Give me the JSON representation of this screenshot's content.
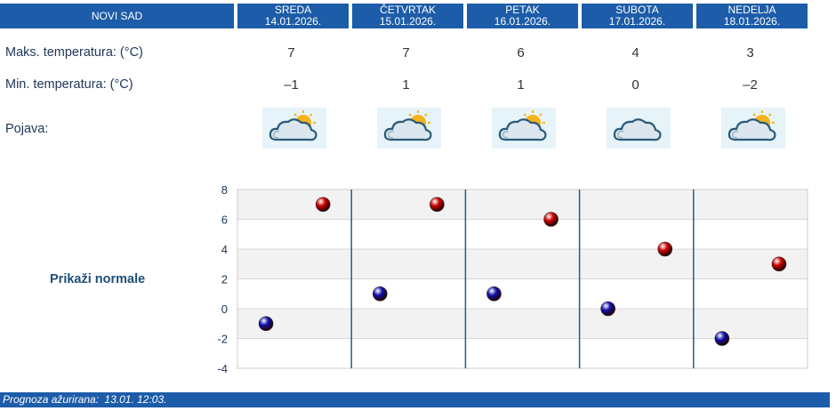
{
  "city": "NOVI SAD",
  "days": [
    {
      "name": "SREDA",
      "date": "14.01.2026.",
      "max": "7",
      "min": "–1",
      "icon": "partly-cloudy-icon"
    },
    {
      "name": "ČETVRTAK",
      "date": "15.01.2026.",
      "max": "7",
      "min": "1",
      "icon": "partly-cloudy-icon"
    },
    {
      "name": "PETAK",
      "date": "16.01.2026.",
      "max": "6",
      "min": "1",
      "icon": "partly-cloudy-icon"
    },
    {
      "name": "SUBOTA",
      "date": "17.01.2026.",
      "max": "4",
      "min": "0",
      "icon": "cloud-icon"
    },
    {
      "name": "NEDELJA",
      "date": "18.01.2026.",
      "max": "3",
      "min": "–2",
      "icon": "partly-cloudy-icon"
    }
  ],
  "labels": {
    "max_temp": "Maks. temperatura: (°C)",
    "min_temp": "Min. temperatura: (°C)",
    "phenomenon": "Pojava:"
  },
  "show_normals": "Prikaži normale",
  "footer": {
    "label": "Prognoza ažurirana:",
    "value": "13.01. 12:03."
  },
  "colors": {
    "header": "#1c5ca8",
    "max_marker": "#cc0000",
    "min_marker": "#1010aa",
    "icon_bg": "#e6f4fa"
  },
  "chart_data": {
    "type": "scatter",
    "title": "",
    "xlabel": "",
    "ylabel": "",
    "categories": [
      "SREDA",
      "ČETVRTAK",
      "PETAK",
      "SUBOTA",
      "NEDELJA"
    ],
    "ylim": [
      -4,
      8
    ],
    "yticks": [
      8,
      6,
      4,
      2,
      0,
      -2,
      -4
    ],
    "grid": true,
    "series": [
      {
        "values": [
          7,
          7,
          6,
          4,
          3
        ],
        "color": "#cc0000"
      },
      {
        "values": [
          -1,
          1,
          1,
          0,
          -2
        ],
        "color": "#1010aa"
      }
    ]
  }
}
